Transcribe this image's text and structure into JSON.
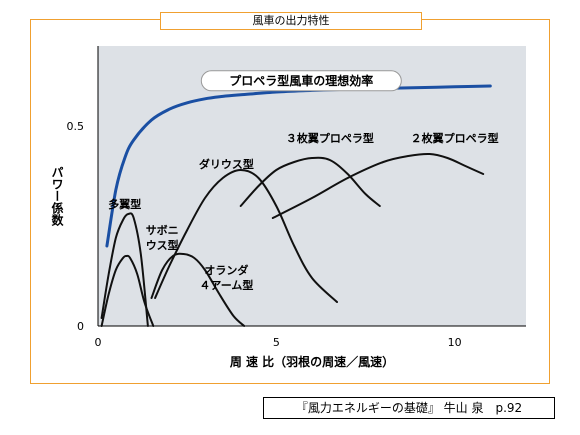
{
  "header": {
    "title": "風車の出力特性"
  },
  "footer": {
    "citation": "『風力エネルギーの基礎』 牛山 泉　p.92"
  },
  "colors": {
    "frame": "#f0a030",
    "plot_bg": "#dde1e6",
    "ideal_curve": "#1a4fa3",
    "curve": "#111111"
  },
  "chart_data": {
    "type": "line",
    "title": "風車の出力特性",
    "xlabel": "周 速 比（羽根の周速／風速）",
    "ylabel": "パワー係数",
    "xlim": [
      0,
      12
    ],
    "ylim": [
      0,
      0.7
    ],
    "xticks": [
      0,
      5,
      10
    ],
    "yticks": [
      0,
      0.5
    ],
    "grid": false,
    "series": [
      {
        "name": "プロペラ型風車の理想効率",
        "label_position": [
          5.7,
          0.608
        ],
        "x": [
          0.25,
          0.5,
          0.75,
          1,
          1.5,
          2,
          2.5,
          3,
          3.5,
          4,
          5,
          6,
          7,
          8,
          9,
          10,
          11
        ],
        "y": [
          0.2,
          0.34,
          0.42,
          0.465,
          0.515,
          0.542,
          0.558,
          0.568,
          0.574,
          0.578,
          0.585,
          0.589,
          0.592,
          0.594,
          0.596,
          0.598,
          0.6
        ]
      },
      {
        "name": "多翼型",
        "label_position": [
          0.75,
          0.3
        ],
        "x": [
          0.1,
          0.3,
          0.5,
          0.7,
          0.85,
          1.0,
          1.2,
          1.4
        ],
        "y": [
          0.02,
          0.13,
          0.22,
          0.265,
          0.28,
          0.27,
          0.18,
          0.0
        ]
      },
      {
        "name": "サボニウス型",
        "label_position": [
          1.8,
          0.235
        ],
        "x": [
          0.1,
          0.3,
          0.5,
          0.7,
          0.8,
          0.9,
          1.1,
          1.3,
          1.55
        ],
        "y": [
          0.0,
          0.08,
          0.14,
          0.17,
          0.175,
          0.17,
          0.13,
          0.06,
          0.0
        ]
      },
      {
        "name": "オランダ４アーム型",
        "label_position": [
          3.6,
          0.135
        ],
        "x": [
          1.5,
          1.8,
          2.1,
          2.4,
          2.7,
          3.0,
          3.4,
          3.8,
          4.1
        ],
        "y": [
          0.07,
          0.14,
          0.175,
          0.18,
          0.17,
          0.14,
          0.08,
          0.025,
          0.0
        ]
      },
      {
        "name": "ダリウス型",
        "label_position": [
          3.6,
          0.4
        ],
        "x": [
          1.6,
          2.0,
          2.5,
          3.0,
          3.5,
          4.0,
          4.5,
          5.0,
          5.5,
          6.0,
          6.7
        ],
        "y": [
          0.07,
          0.15,
          0.24,
          0.32,
          0.37,
          0.39,
          0.37,
          0.3,
          0.2,
          0.12,
          0.06
        ]
      },
      {
        "name": "３枚翼プロペラ型",
        "label_position": [
          6.5,
          0.465
        ],
        "x": [
          4.0,
          4.5,
          5.0,
          5.5,
          6.0,
          6.5,
          7.0,
          7.5,
          7.9
        ],
        "y": [
          0.3,
          0.35,
          0.39,
          0.41,
          0.42,
          0.415,
          0.38,
          0.33,
          0.3
        ]
      },
      {
        "name": "２枚翼プロペラ型",
        "label_position": [
          10.0,
          0.465
        ],
        "x": [
          4.9,
          6.0,
          7.0,
          8.0,
          8.7,
          9.3,
          9.8,
          10.3,
          10.8
        ],
        "y": [
          0.27,
          0.32,
          0.37,
          0.41,
          0.425,
          0.43,
          0.42,
          0.4,
          0.38
        ]
      }
    ]
  }
}
